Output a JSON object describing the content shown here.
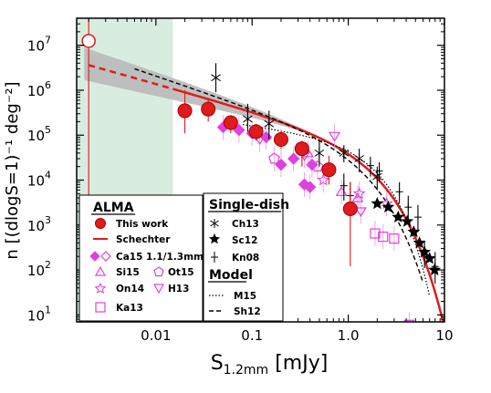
{
  "chart_data": {
    "type": "scatter",
    "xlabel_main": "S",
    "xlabel_sub": "1.2mm",
    "xlabel_unit": " [mJy]",
    "ylabel": "n [(dlogS=1)⁻¹ deg⁻²]",
    "xscale": "log",
    "yscale": "log",
    "xlim": [
      0.0015,
      10
    ],
    "ylim": [
      7,
      40000000
    ],
    "x_ticks": [
      {
        "v": 0.01,
        "label": "0.01"
      },
      {
        "v": 0.1,
        "label": "0.1"
      },
      {
        "v": 1,
        "label": "1.0"
      },
      {
        "v": 10,
        "label": "10"
      }
    ],
    "y_ticks": [
      {
        "v": 10,
        "base": "10",
        "exp": "1"
      },
      {
        "v": 100,
        "base": "10",
        "exp": "2"
      },
      {
        "v": 1000,
        "base": "10",
        "exp": "3"
      },
      {
        "v": 10000,
        "base": "10",
        "exp": "4"
      },
      {
        "v": 100000,
        "base": "10",
        "exp": "5"
      },
      {
        "v": 1000000,
        "base": "10",
        "exp": "6"
      },
      {
        "v": 10000000,
        "base": "10",
        "exp": "7"
      }
    ],
    "shaded_region": {
      "x_from": 0.0015,
      "x_to": 0.015,
      "color": "#d8eddf"
    },
    "colors": {
      "red": "#e01b1b",
      "magenta": "#e040e0",
      "black": "#000000",
      "band": "#b9b9b9"
    },
    "series": [
      {
        "name": "This work",
        "marker": "circle-filled",
        "color": "#e01b1b",
        "points": [
          [
            0.02,
            350000,
            110000,
            1000000
          ],
          [
            0.035,
            380000,
            200000,
            650000
          ],
          [
            0.06,
            190000,
            110000,
            280000
          ],
          [
            0.11,
            120000,
            75000,
            180000
          ],
          [
            0.2,
            80000,
            50000,
            120000
          ],
          [
            0.33,
            50000,
            20000,
            75000
          ],
          [
            0.63,
            17000,
            8000,
            35000
          ],
          [
            1.05,
            2300,
            120,
            8500
          ]
        ]
      },
      {
        "name": "Open circle point",
        "marker": "circle-open",
        "color": "#e01b1b",
        "points": [
          [
            0.002,
            12500000,
            3,
            40000000
          ]
        ]
      },
      {
        "name": "Ca15 1.1/1.3mm",
        "marker": "diamond",
        "color": "#e040e0",
        "points": [
          [
            0.05,
            150000,
            null,
            null
          ],
          [
            0.073,
            130000,
            null,
            null
          ],
          [
            0.1,
            110000,
            null,
            null
          ],
          [
            0.14,
            90000,
            null,
            null
          ],
          [
            0.2,
            22000,
            null,
            null
          ],
          [
            0.27,
            30000,
            null,
            null
          ],
          [
            0.42,
            22000,
            null,
            null
          ],
          [
            0.35,
            8000,
            null,
            null
          ],
          [
            0.4,
            7000,
            null,
            null
          ]
        ]
      },
      {
        "name": "Si15",
        "marker": "triangle-up",
        "color": "#e040e0",
        "points": [
          [
            0.38,
            40000,
            null,
            null
          ],
          [
            0.85,
            5500,
            null,
            null
          ],
          [
            1.25,
            4000,
            null,
            null
          ]
        ]
      },
      {
        "name": "Ot15",
        "marker": "pentagon",
        "color": "#e040e0",
        "points": [
          [
            0.17,
            30000,
            null,
            null
          ],
          [
            0.48,
            20000,
            null,
            null
          ]
        ]
      },
      {
        "name": "On14",
        "marker": "star",
        "color": "#e040e0",
        "points": [
          [
            0.55,
            10000,
            null,
            null
          ],
          [
            1.3,
            5000,
            null,
            null
          ],
          [
            2.5,
            3000,
            null,
            null
          ]
        ]
      },
      {
        "name": "H13",
        "marker": "triangle-down",
        "color": "#e040e0",
        "points": [
          [
            0.12,
            80000,
            null,
            null
          ],
          [
            0.2,
            75000,
            null,
            null
          ],
          [
            0.35,
            35000,
            null,
            null
          ],
          [
            0.72,
            95000,
            null,
            null
          ],
          [
            1.35,
            2000,
            null,
            null
          ]
        ]
      },
      {
        "name": "Ka13",
        "marker": "square-open",
        "color": "#e040e0",
        "points": [
          [
            1.9,
            650,
            null,
            null
          ],
          [
            2.3,
            550,
            null,
            null
          ],
          [
            3.0,
            500,
            null,
            null
          ],
          [
            4.3,
            6,
            null,
            null
          ]
        ]
      },
      {
        "name": "Ch13",
        "marker": "asterisk",
        "color": "#000000",
        "points": [
          [
            0.042,
            1900000,
            900000,
            4000000
          ],
          [
            0.09,
            230000,
            120000,
            500000
          ],
          [
            0.15,
            180000,
            80000,
            350000
          ],
          [
            0.5,
            40000,
            20000,
            80000
          ],
          [
            0.9,
            40000,
            25000,
            60000
          ],
          [
            1.3,
            30000,
            15000,
            50000
          ],
          [
            2.0,
            12000,
            6000,
            20000
          ]
        ]
      },
      {
        "name": "Sc12",
        "marker": "star-filled",
        "color": "#000000",
        "points": [
          [
            2.0,
            3000,
            null,
            null
          ],
          [
            2.6,
            2500,
            null,
            null
          ],
          [
            3.3,
            1500,
            null,
            null
          ],
          [
            4.1,
            1200,
            null,
            null
          ],
          [
            4.8,
            700,
            null,
            null
          ],
          [
            5.5,
            400,
            null,
            null
          ],
          [
            6.2,
            250,
            null,
            null
          ],
          [
            7.0,
            180,
            null,
            null
          ],
          [
            7.9,
            100,
            null,
            null
          ]
        ]
      },
      {
        "name": "Kn08",
        "marker": "plus",
        "color": "#000000",
        "points": [
          [
            0.9,
            7500,
            3500,
            14000
          ],
          [
            1.05,
            4500,
            2000,
            9000
          ],
          [
            1.7,
            21000,
            12000,
            33000
          ],
          [
            2.1,
            16000,
            9000,
            25000
          ],
          [
            3.4,
            5500,
            3000,
            9000
          ],
          [
            4.2,
            2500,
            1200,
            4500
          ],
          [
            5.3,
            1500,
            700,
            2800
          ],
          [
            6.2,
            220,
            110,
            450
          ],
          [
            8.0,
            120,
            50,
            250
          ]
        ]
      }
    ],
    "curves": [
      {
        "name": "Schechter",
        "style": "solid-red",
        "xmin": 0.015,
        "xmax": 10
      },
      {
        "name": "Schechter extrapolation",
        "style": "dashed-red",
        "xmin": 0.002,
        "xmax": 0.015
      },
      {
        "name": "M15",
        "style": "dotted-black",
        "xmin": 0.08,
        "xmax": 7
      },
      {
        "name": "Sh12",
        "style": "dashed-black",
        "xmin": 0.006,
        "xmax": 6
      }
    ],
    "legend": {
      "alma_title": "ALMA",
      "single_dish_title": "Single-dish",
      "model_title": "Model",
      "this_work": "This work",
      "schechter": "Schechter",
      "ca15": "Ca15 1.1/1.3mm",
      "si15": "Si15",
      "ot15": "Ot15",
      "on14": "On14",
      "h13": "H13",
      "ka13": "Ka13",
      "ch13": "Ch13",
      "sc12": "Sc12",
      "kn08": "Kn08",
      "m15": "M15",
      "sh12": "Sh12"
    }
  }
}
